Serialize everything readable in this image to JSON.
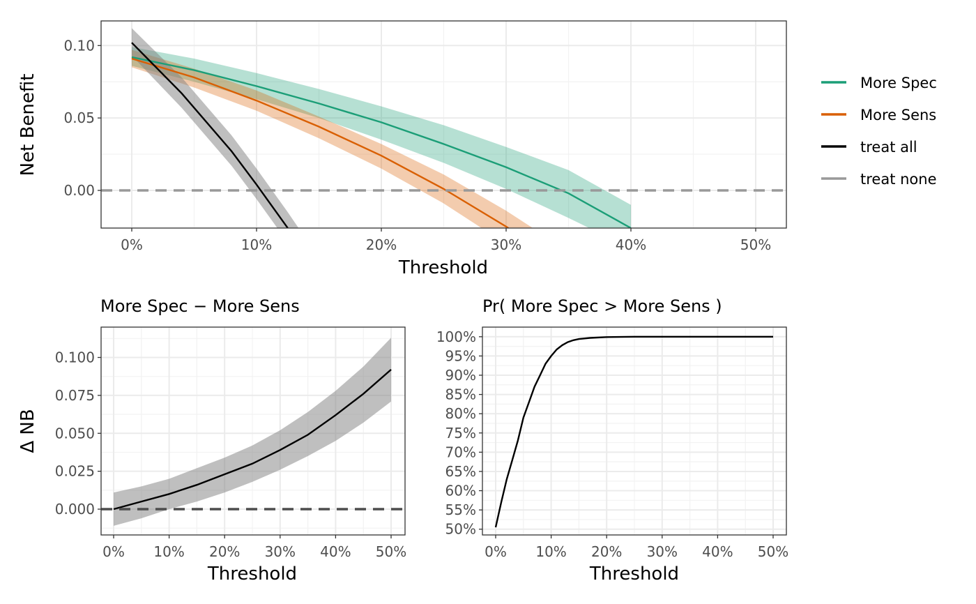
{
  "chart_data": [
    {
      "type": "line",
      "ylabel": "Net Benefit",
      "xlabel": "Threshold",
      "xlim": [
        0,
        0.5
      ],
      "ylim": [
        -0.026,
        0.117
      ],
      "x_ticks": [
        0,
        0.1,
        0.2,
        0.3,
        0.4,
        0.5
      ],
      "x_tick_labels": [
        "0%",
        "10%",
        "20%",
        "30%",
        "40%",
        "50%"
      ],
      "y_ticks": [
        0,
        0.05,
        0.1
      ],
      "y_tick_labels": [
        "0.00",
        "0.05",
        "0.10"
      ],
      "grid": true,
      "legend_position": "right",
      "series": [
        {
          "name": "More Spec",
          "color": "#1B9E77",
          "x": [
            0,
            0.05,
            0.1,
            0.15,
            0.2,
            0.25,
            0.3,
            0.35,
            0.4
          ],
          "y": [
            0.092,
            0.083,
            0.072,
            0.06,
            0.047,
            0.032,
            0.016,
            -0.002,
            -0.026
          ],
          "lower": [
            0.086,
            0.075,
            0.063,
            0.05,
            0.035,
            0.019,
            0.001,
            -0.019,
            -0.04
          ],
          "upper": [
            0.099,
            0.091,
            0.081,
            0.07,
            0.058,
            0.045,
            0.03,
            0.014,
            -0.01
          ]
        },
        {
          "name": "More Sens",
          "color": "#D95F02",
          "x": [
            0,
            0.05,
            0.1,
            0.15,
            0.2,
            0.25,
            0.3,
            0.325
          ],
          "y": [
            0.091,
            0.078,
            0.062,
            0.044,
            0.024,
            0.001,
            -0.025,
            -0.04
          ],
          "lower": [
            0.085,
            0.071,
            0.055,
            0.036,
            0.015,
            -0.009,
            -0.037,
            -0.053
          ],
          "upper": [
            0.097,
            0.084,
            0.069,
            0.051,
            0.032,
            0.011,
            -0.014,
            -0.028
          ]
        },
        {
          "name": "treat all",
          "color": "#000000",
          "x": [
            0,
            0.04,
            0.08,
            0.1,
            0.125,
            0.14
          ],
          "y": [
            0.102,
            0.067,
            0.027,
            0.004,
            -0.026,
            -0.045
          ],
          "lower": [
            0.093,
            0.057,
            0.017,
            -0.006,
            -0.036,
            -0.055
          ],
          "upper": [
            0.112,
            0.078,
            0.038,
            0.015,
            -0.015,
            -0.034
          ]
        },
        {
          "name": "treat none",
          "color": "#999999",
          "dashed": true,
          "x": [
            0,
            0.5
          ],
          "y": [
            0,
            0
          ]
        }
      ]
    },
    {
      "type": "line",
      "title": "More Spec − More Sens",
      "ylabel": "Δ NB",
      "xlabel": "Threshold",
      "xlim": [
        0,
        0.5
      ],
      "ylim": [
        -0.017,
        0.12
      ],
      "x_ticks": [
        0,
        0.1,
        0.2,
        0.3,
        0.4,
        0.5
      ],
      "x_tick_labels": [
        "0%",
        "10%",
        "20%",
        "30%",
        "40%",
        "50%"
      ],
      "y_ticks": [
        0,
        0.025,
        0.05,
        0.075,
        0.1
      ],
      "y_tick_labels": [
        "0.000",
        "0.025",
        "0.050",
        "0.075",
        "0.100"
      ],
      "grid": true,
      "series": [
        {
          "name": "",
          "color": "#000000",
          "x": [
            0,
            0.05,
            0.1,
            0.15,
            0.2,
            0.25,
            0.3,
            0.35,
            0.4,
            0.45,
            0.5
          ],
          "y": [
            0.0,
            0.005,
            0.01,
            0.016,
            0.023,
            0.03,
            0.039,
            0.049,
            0.062,
            0.076,
            0.092
          ],
          "lower": [
            -0.011,
            -0.006,
            0.0,
            0.005,
            0.011,
            0.018,
            0.026,
            0.035,
            0.045,
            0.057,
            0.071
          ],
          "upper": [
            0.011,
            0.015,
            0.02,
            0.027,
            0.034,
            0.042,
            0.052,
            0.064,
            0.078,
            0.094,
            0.113
          ]
        },
        {
          "name": "",
          "color": "#4d4d4d",
          "dashed": true,
          "x": [
            0,
            0.5
          ],
          "y": [
            0,
            0
          ]
        }
      ]
    },
    {
      "type": "line",
      "title": "Pr( More Spec > More Sens )",
      "xlabel": "Threshold",
      "xlim": [
        0,
        0.5
      ],
      "ylim": [
        0.485,
        1.025
      ],
      "x_ticks": [
        0,
        0.1,
        0.2,
        0.3,
        0.4,
        0.5
      ],
      "x_tick_labels": [
        "0%",
        "10%",
        "20%",
        "30%",
        "40%",
        "50%"
      ],
      "y_ticks": [
        0.5,
        0.55,
        0.6,
        0.65,
        0.7,
        0.75,
        0.8,
        0.85,
        0.9,
        0.95,
        1.0
      ],
      "y_tick_labels": [
        "50%",
        "55%",
        "60%",
        "65%",
        "70%",
        "75%",
        "80%",
        "85%",
        "90%",
        "95%",
        "100%"
      ],
      "grid": true,
      "series": [
        {
          "name": "",
          "color": "#000000",
          "x": [
            0,
            0.01,
            0.02,
            0.03,
            0.04,
            0.05,
            0.06,
            0.07,
            0.08,
            0.09,
            0.1,
            0.11,
            0.12,
            0.13,
            0.14,
            0.15,
            0.17,
            0.2,
            0.25,
            0.3,
            0.4,
            0.5
          ],
          "y": [
            0.505,
            0.57,
            0.63,
            0.68,
            0.73,
            0.79,
            0.83,
            0.87,
            0.9,
            0.93,
            0.95,
            0.967,
            0.978,
            0.986,
            0.991,
            0.994,
            0.997,
            0.999,
            1.0,
            1.0,
            1.0,
            1.0
          ]
        }
      ]
    }
  ]
}
